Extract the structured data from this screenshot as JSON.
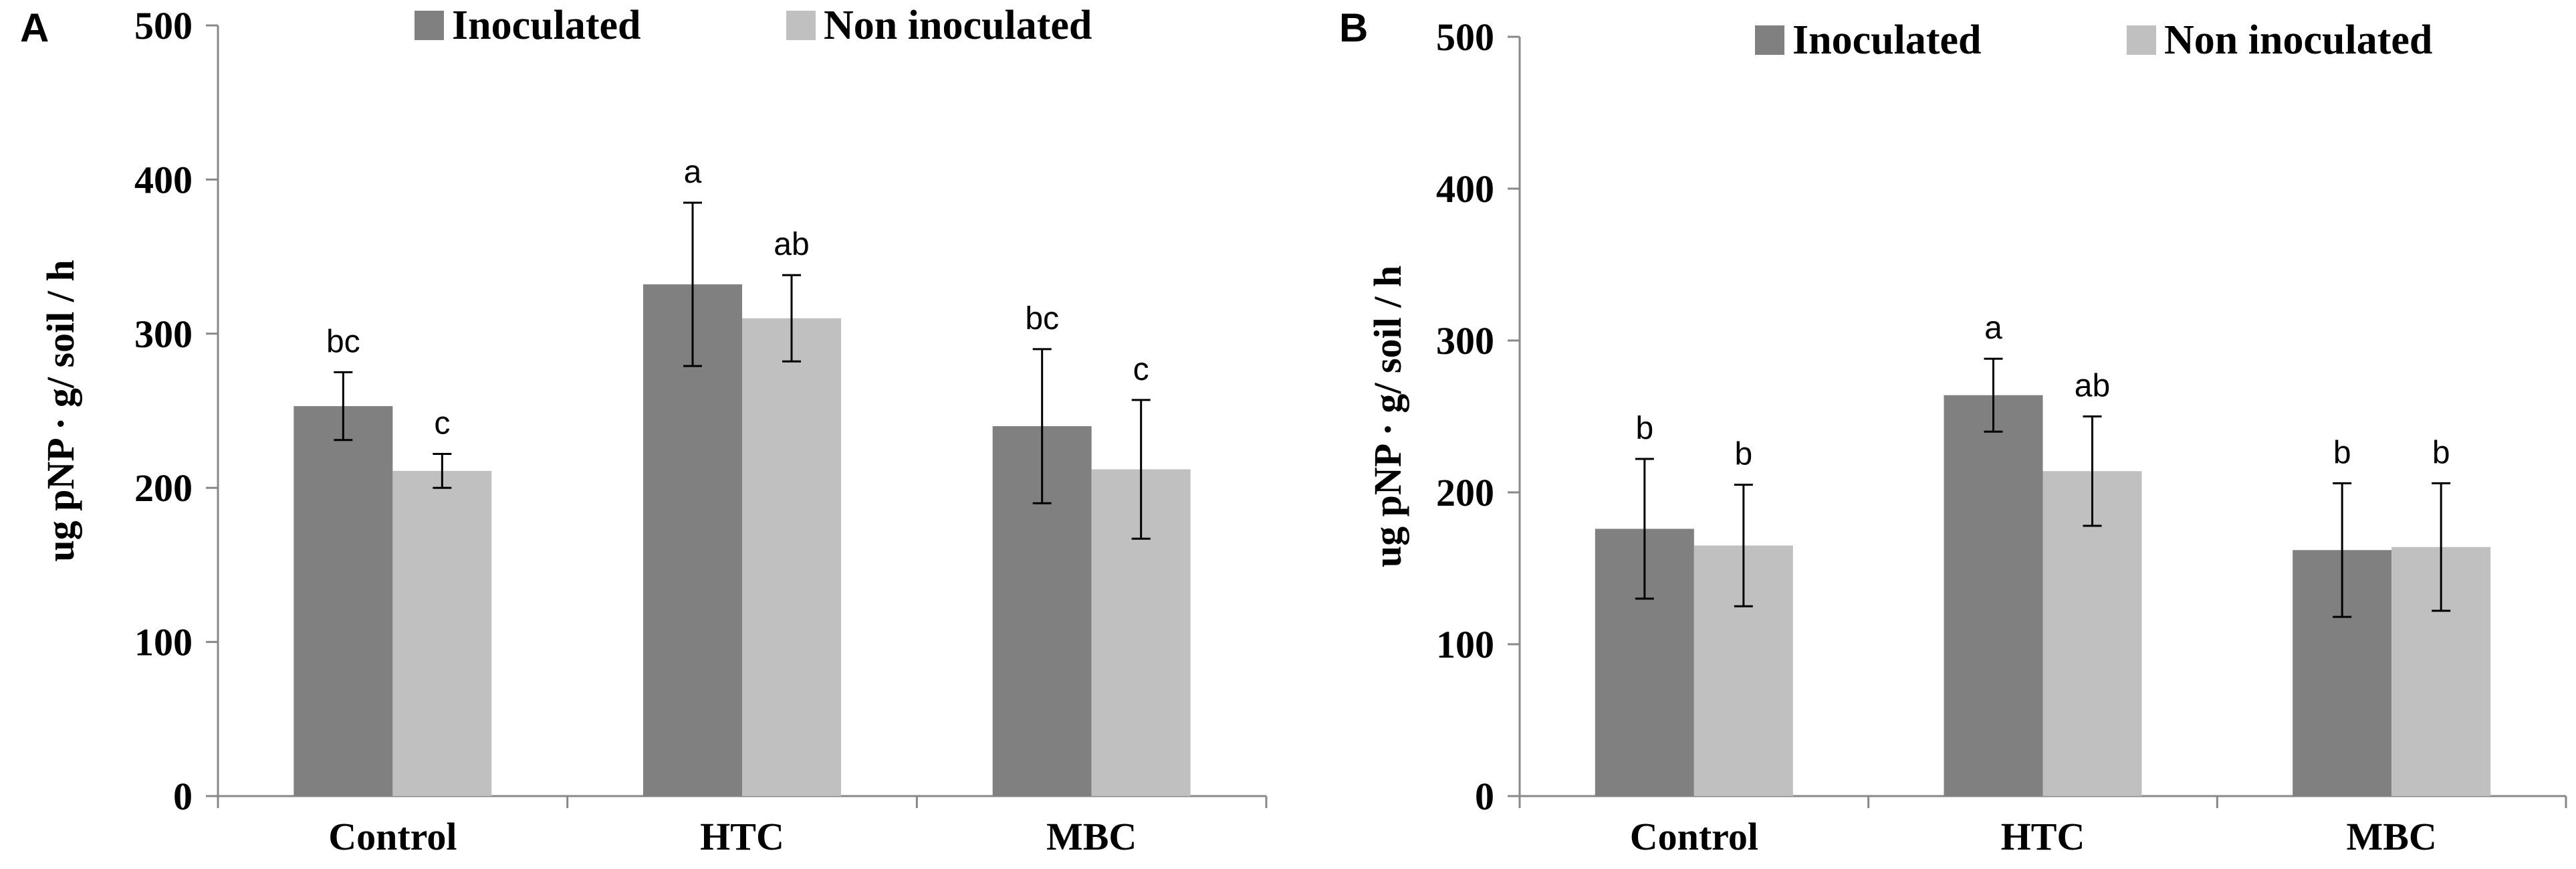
{
  "chart_data": [
    {
      "type": "bar",
      "panel_label": "A",
      "title": "",
      "xlabel": "",
      "ylabel": "ug pNP · g/ soil / h",
      "ylim": [
        0,
        500
      ],
      "yticks": [
        "0",
        "100",
        "200",
        "300",
        "400",
        "500"
      ],
      "categories": [
        "Control",
        "HTC",
        "MBC"
      ],
      "legend_position": "top",
      "series": [
        {
          "name": "Inoculated",
          "color": "#808080",
          "values": [
            253,
            332,
            240
          ],
          "errors": [
            22,
            53,
            50
          ],
          "labels": [
            "bc",
            "a",
            "bc"
          ]
        },
        {
          "name": "Non inoculated",
          "color": "#c0c0c0",
          "values": [
            211,
            310,
            212
          ],
          "errors": [
            11,
            28,
            45
          ],
          "labels": [
            "c",
            "ab",
            "c"
          ]
        }
      ]
    },
    {
      "type": "bar",
      "panel_label": "B",
      "title": "",
      "xlabel": "",
      "ylabel": "ug pNP · g/ soil / h",
      "ylim": [
        0,
        500
      ],
      "yticks": [
        "0",
        "100",
        "200",
        "300",
        "400",
        "500"
      ],
      "categories": [
        "Control",
        "HTC",
        "MBC"
      ],
      "legend_position": "top",
      "series": [
        {
          "name": "Inoculated",
          "color": "#808080",
          "values": [
            176,
            264,
            162
          ],
          "errors": [
            46,
            24,
            44
          ],
          "labels": [
            "b",
            "a",
            "b"
          ]
        },
        {
          "name": "Non inoculated",
          "color": "#c0c0c0",
          "values": [
            165,
            214,
            164
          ],
          "errors": [
            40,
            36,
            42
          ],
          "labels": [
            "b",
            "ab",
            "b"
          ]
        }
      ]
    }
  ]
}
